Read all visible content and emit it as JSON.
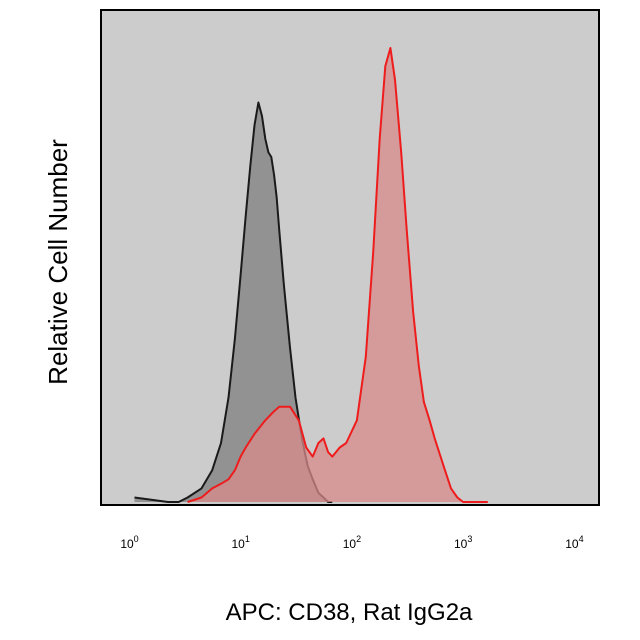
{
  "chart_data": {
    "type": "area",
    "title": "",
    "xlabel": "APC: CD38, Rat IgG2a",
    "ylabel": "Relative Cell Number",
    "xscale": "log",
    "xlim": [
      0.5,
      15000
    ],
    "ylim": [
      0,
      1
    ],
    "grid": false,
    "background": "#cccccc",
    "x_ticks": [
      {
        "base": "10",
        "exp": "0"
      },
      {
        "base": "10",
        "exp": "1"
      },
      {
        "base": "10",
        "exp": "2"
      },
      {
        "base": "10",
        "exp": "3"
      },
      {
        "base": "10",
        "exp": "4"
      }
    ],
    "series": [
      {
        "color": "#1a1a1a",
        "fill": "#8c8c8c",
        "x": [
          1,
          2,
          2.5,
          3,
          4,
          5,
          6,
          7,
          8,
          9,
          10,
          11,
          12,
          13,
          14,
          15,
          16,
          17,
          18,
          19,
          20,
          22,
          25,
          28,
          32,
          36,
          40,
          45,
          50,
          55,
          60
        ],
        "y": [
          0.01,
          0.0,
          0.0,
          0.01,
          0.03,
          0.07,
          0.13,
          0.23,
          0.36,
          0.5,
          0.63,
          0.74,
          0.83,
          0.88,
          0.85,
          0.8,
          0.77,
          0.76,
          0.72,
          0.67,
          0.6,
          0.48,
          0.34,
          0.23,
          0.14,
          0.08,
          0.05,
          0.02,
          0.01,
          0.0,
          0.0
        ]
      },
      {
        "color": "#ee1c1c",
        "fill": "#d88a8a",
        "x": [
          3,
          4,
          5,
          6,
          7,
          8,
          9,
          10,
          12,
          15,
          18,
          20,
          25,
          30,
          35,
          40,
          45,
          50,
          55,
          60,
          70,
          80,
          100,
          120,
          140,
          160,
          180,
          200,
          220,
          250,
          280,
          320,
          360,
          400,
          450,
          500,
          600,
          700,
          800,
          900,
          1000,
          1100,
          1200,
          1500
        ],
        "y": [
          0.0,
          0.01,
          0.03,
          0.04,
          0.05,
          0.07,
          0.1,
          0.12,
          0.15,
          0.18,
          0.2,
          0.21,
          0.21,
          0.18,
          0.12,
          0.1,
          0.13,
          0.14,
          0.11,
          0.1,
          0.12,
          0.13,
          0.18,
          0.32,
          0.55,
          0.8,
          0.96,
          1.0,
          0.93,
          0.77,
          0.6,
          0.42,
          0.3,
          0.22,
          0.18,
          0.14,
          0.08,
          0.03,
          0.01,
          0.0,
          0.0,
          0.0,
          0.0,
          0.0
        ]
      }
    ]
  }
}
